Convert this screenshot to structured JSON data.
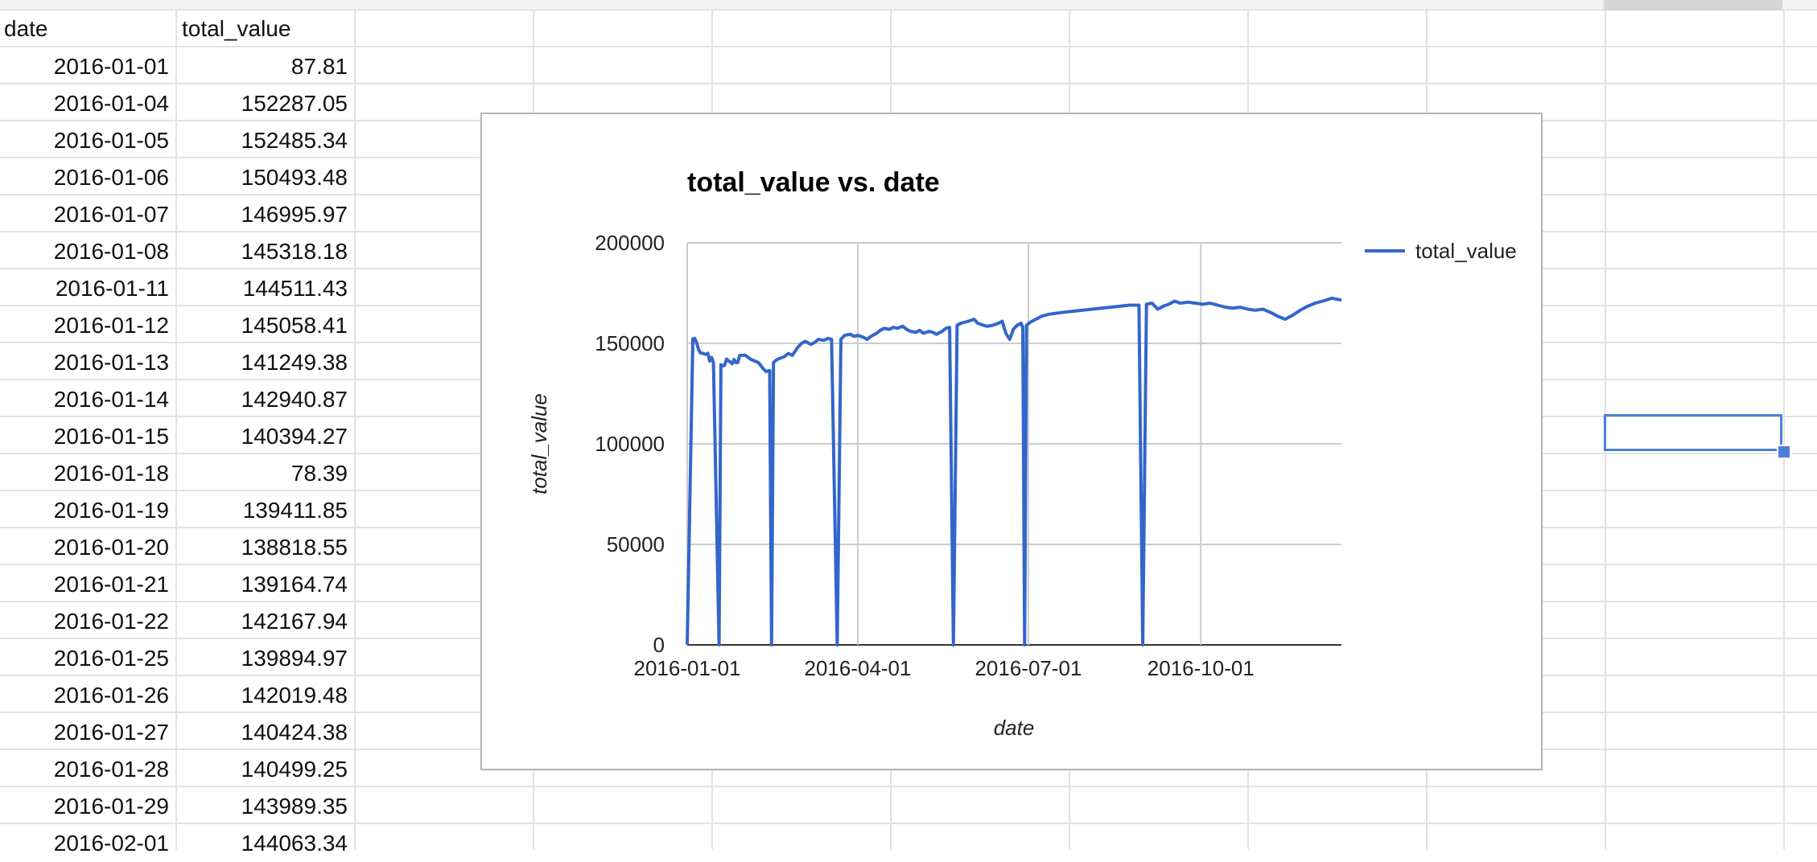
{
  "sheet": {
    "headers": {
      "date": "date",
      "total_value": "total_value"
    },
    "rows": [
      {
        "date": "2016-01-01",
        "value": "87.81"
      },
      {
        "date": "2016-01-04",
        "value": "152287.05"
      },
      {
        "date": "2016-01-05",
        "value": "152485.34"
      },
      {
        "date": "2016-01-06",
        "value": "150493.48"
      },
      {
        "date": "2016-01-07",
        "value": "146995.97"
      },
      {
        "date": "2016-01-08",
        "value": "145318.18"
      },
      {
        "date": "2016-01-11",
        "value": "144511.43"
      },
      {
        "date": "2016-01-12",
        "value": "145058.41"
      },
      {
        "date": "2016-01-13",
        "value": "141249.38"
      },
      {
        "date": "2016-01-14",
        "value": "142940.87"
      },
      {
        "date": "2016-01-15",
        "value": "140394.27"
      },
      {
        "date": "2016-01-18",
        "value": "78.39"
      },
      {
        "date": "2016-01-19",
        "value": "139411.85"
      },
      {
        "date": "2016-01-20",
        "value": "138818.55"
      },
      {
        "date": "2016-01-21",
        "value": "139164.74"
      },
      {
        "date": "2016-01-22",
        "value": "142167.94"
      },
      {
        "date": "2016-01-25",
        "value": "139894.97"
      },
      {
        "date": "2016-01-26",
        "value": "142019.48"
      },
      {
        "date": "2016-01-27",
        "value": "140424.38"
      },
      {
        "date": "2016-01-28",
        "value": "140499.25"
      },
      {
        "date": "2016-01-29",
        "value": "143989.35"
      },
      {
        "date": "2016-02-01",
        "value": "144063.34"
      }
    ]
  },
  "chart_data": {
    "type": "line",
    "title": "total_value vs. date",
    "xlabel": "date",
    "ylabel": "total_value",
    "ylim": [
      0,
      200000
    ],
    "xlim": [
      "2016-01-01",
      "2016-12-15"
    ],
    "yticks": [
      "0",
      "50000",
      "100000",
      "150000",
      "200000"
    ],
    "xticks": [
      "2016-01-01",
      "2016-04-01",
      "2016-07-01",
      "2016-10-01"
    ],
    "grid": true,
    "legend_position": "right",
    "line_color": "#3366cc",
    "series": [
      {
        "name": "total_value",
        "points": [
          [
            "2016-01-01",
            87.81
          ],
          [
            "2016-01-04",
            152287.05
          ],
          [
            "2016-01-05",
            152485.34
          ],
          [
            "2016-01-06",
            150493.48
          ],
          [
            "2016-01-07",
            146995.97
          ],
          [
            "2016-01-08",
            145318.18
          ],
          [
            "2016-01-11",
            144511.43
          ],
          [
            "2016-01-12",
            145058.41
          ],
          [
            "2016-01-13",
            141249.38
          ],
          [
            "2016-01-14",
            142940.87
          ],
          [
            "2016-01-15",
            140394.27
          ],
          [
            "2016-01-18",
            78.39
          ],
          [
            "2016-01-19",
            139411.85
          ],
          [
            "2016-01-20",
            138818.55
          ],
          [
            "2016-01-21",
            139164.74
          ],
          [
            "2016-01-22",
            142167.94
          ],
          [
            "2016-01-25",
            139894.97
          ],
          [
            "2016-01-26",
            142019.48
          ],
          [
            "2016-01-27",
            140424.38
          ],
          [
            "2016-01-28",
            140499.25
          ],
          [
            "2016-01-29",
            143989.35
          ],
          [
            "2016-02-01",
            144063.34
          ],
          [
            "2016-02-04",
            142000
          ],
          [
            "2016-02-08",
            140500
          ],
          [
            "2016-02-10",
            138000
          ],
          [
            "2016-02-12",
            136000
          ],
          [
            "2016-02-14",
            136500
          ],
          [
            "2016-02-15",
            0
          ],
          [
            "2016-02-16",
            140500
          ],
          [
            "2016-02-18",
            142000
          ],
          [
            "2016-02-22",
            143500
          ],
          [
            "2016-02-24",
            145000
          ],
          [
            "2016-02-26",
            144000
          ],
          [
            "2016-02-29",
            148000
          ],
          [
            "2016-03-02",
            150000
          ],
          [
            "2016-03-04",
            151000
          ],
          [
            "2016-03-07",
            149500
          ],
          [
            "2016-03-09",
            150500
          ],
          [
            "2016-03-11",
            152000
          ],
          [
            "2016-03-14",
            151500
          ],
          [
            "2016-03-16",
            152500
          ],
          [
            "2016-03-18",
            152000
          ],
          [
            "2016-03-21",
            0
          ],
          [
            "2016-03-23",
            152000
          ],
          [
            "2016-03-25",
            154000
          ],
          [
            "2016-03-28",
            154500
          ],
          [
            "2016-03-30",
            153500
          ],
          [
            "2016-04-01",
            154000
          ],
          [
            "2016-04-04",
            153000
          ],
          [
            "2016-04-06",
            152000
          ],
          [
            "2016-04-08",
            153500
          ],
          [
            "2016-04-11",
            155000
          ],
          [
            "2016-04-13",
            156500
          ],
          [
            "2016-04-15",
            157500
          ],
          [
            "2016-04-18",
            157000
          ],
          [
            "2016-04-20",
            158000
          ],
          [
            "2016-04-22",
            157500
          ],
          [
            "2016-04-25",
            158500
          ],
          [
            "2016-04-27",
            157000
          ],
          [
            "2016-04-29",
            156000
          ],
          [
            "2016-05-02",
            155500
          ],
          [
            "2016-05-04",
            156500
          ],
          [
            "2016-05-06",
            155000
          ],
          [
            "2016-05-09",
            156000
          ],
          [
            "2016-05-11",
            155500
          ],
          [
            "2016-05-13",
            154500
          ],
          [
            "2016-05-16",
            156000
          ],
          [
            "2016-05-18",
            157500
          ],
          [
            "2016-05-20",
            158000
          ],
          [
            "2016-05-22",
            0
          ],
          [
            "2016-05-24",
            159000
          ],
          [
            "2016-05-26",
            160000
          ],
          [
            "2016-05-30",
            161000
          ],
          [
            "2016-06-02",
            162000
          ],
          [
            "2016-06-04",
            160000
          ],
          [
            "2016-06-07",
            159000
          ],
          [
            "2016-06-09",
            158500
          ],
          [
            "2016-06-12",
            159000
          ],
          [
            "2016-06-15",
            160000
          ],
          [
            "2016-06-17",
            161000
          ],
          [
            "2016-06-19",
            155000
          ],
          [
            "2016-06-21",
            152000
          ],
          [
            "2016-06-23",
            157000
          ],
          [
            "2016-06-25",
            159000
          ],
          [
            "2016-06-27",
            160000
          ],
          [
            "2016-06-28",
            158000
          ],
          [
            "2016-06-29",
            0
          ],
          [
            "2016-06-30",
            159000
          ],
          [
            "2016-07-02",
            160500
          ],
          [
            "2016-07-05",
            162000
          ],
          [
            "2016-07-08",
            163500
          ],
          [
            "2016-07-12",
            164500
          ],
          [
            "2016-07-16",
            165000
          ],
          [
            "2016-07-20",
            165500
          ],
          [
            "2016-07-25",
            166000
          ],
          [
            "2016-07-30",
            166500
          ],
          [
            "2016-08-04",
            167000
          ],
          [
            "2016-08-09",
            167500
          ],
          [
            "2016-08-14",
            168000
          ],
          [
            "2016-08-19",
            168500
          ],
          [
            "2016-08-24",
            169000
          ],
          [
            "2016-08-29",
            169000
          ],
          [
            "2016-08-31",
            0
          ],
          [
            "2016-09-02",
            169500
          ],
          [
            "2016-09-05",
            170000
          ],
          [
            "2016-09-08",
            167000
          ],
          [
            "2016-09-11",
            168500
          ],
          [
            "2016-09-14",
            169500
          ],
          [
            "2016-09-17",
            171000
          ],
          [
            "2016-09-20",
            170000
          ],
          [
            "2016-09-24",
            170500
          ],
          [
            "2016-09-28",
            170000
          ],
          [
            "2016-10-02",
            169500
          ],
          [
            "2016-10-06",
            170000
          ],
          [
            "2016-10-10",
            169000
          ],
          [
            "2016-10-14",
            168000
          ],
          [
            "2016-10-18",
            167500
          ],
          [
            "2016-10-22",
            168000
          ],
          [
            "2016-10-26",
            167000
          ],
          [
            "2016-10-30",
            166500
          ],
          [
            "2016-11-03",
            167000
          ],
          [
            "2016-11-07",
            165500
          ],
          [
            "2016-11-11",
            163500
          ],
          [
            "2016-11-15",
            162000
          ],
          [
            "2016-11-19",
            164000
          ],
          [
            "2016-11-23",
            166500
          ],
          [
            "2016-11-27",
            168500
          ],
          [
            "2016-12-01",
            170000
          ],
          [
            "2016-12-05",
            171000
          ],
          [
            "2016-12-10",
            172500
          ],
          [
            "2016-12-15",
            171500
          ]
        ]
      }
    ]
  }
}
